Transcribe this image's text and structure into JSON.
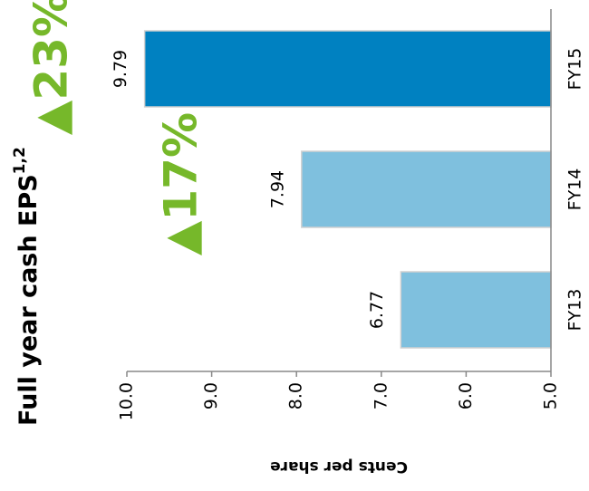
{
  "chart_data": {
    "type": "bar",
    "title": "Full year cash EPS",
    "title_superscript": "1,2",
    "y_label": "Cents per share",
    "categories": [
      "FY13",
      "FY14",
      "FY15"
    ],
    "values": [
      6.77,
      7.94,
      9.79
    ],
    "colors": [
      "#7fc0de",
      "#7fc0de",
      "#0081c1"
    ],
    "ylim": [
      5,
      10
    ],
    "yticks": [
      {
        "value": 5,
        "label": "5.0"
      },
      {
        "value": 6,
        "label": "6.0"
      },
      {
        "value": 7,
        "label": "7.0"
      },
      {
        "value": 8,
        "label": "8.0"
      },
      {
        "value": 9,
        "label": "9.0"
      },
      {
        "value": 10,
        "label": "10.0"
      }
    ],
    "annotations": [
      {
        "text": "▲17%",
        "between": [
          0,
          1
        ],
        "color": "#76b82a"
      },
      {
        "text": "▲23%",
        "between": [
          1,
          2
        ],
        "color": "#76b82a"
      }
    ]
  }
}
